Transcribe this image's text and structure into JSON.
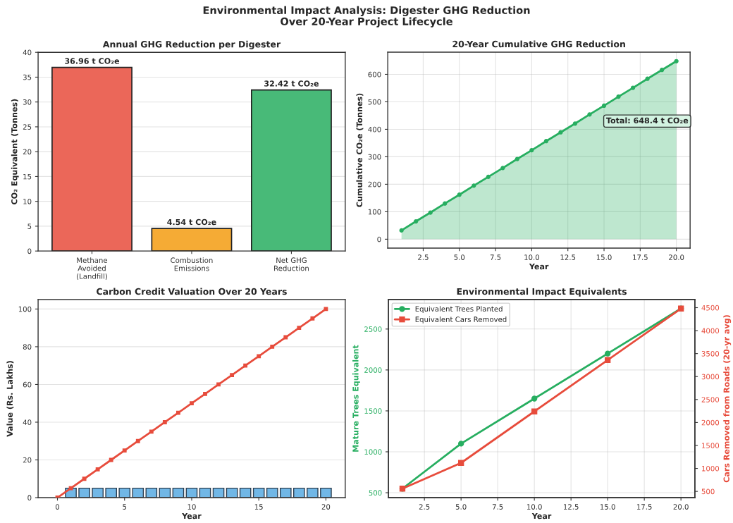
{
  "chart_data": [
    {
      "type": "other",
      "title": "Environmental Impact Analysis: Digester GHG Reduction\nOver 20-Year Project Lifecycle"
    },
    {
      "type": "bar",
      "title": "Annual GHG Reduction per Digester",
      "ylabel": "CO₂ Equivalent (Tonnes)",
      "categories": [
        "Methane\nAvoided\n(Landfill)",
        "Combustion\nEmissions",
        "Net GHG\nReduction"
      ],
      "values": [
        36.96,
        4.54,
        32.42
      ],
      "colors": [
        "#eb6759",
        "#f5ab35",
        "#48ba78"
      ],
      "value_labels": [
        "36.96 t CO₂e",
        "4.54 t CO₂e",
        "32.42 t CO₂e"
      ],
      "ylim": [
        0,
        40
      ],
      "yticks": [
        0,
        5,
        10,
        15,
        20,
        25,
        30,
        35,
        40
      ],
      "grid": "y"
    },
    {
      "type": "area",
      "title": "20-Year Cumulative GHG Reduction",
      "xlabel": "Year",
      "ylabel": "Cumulative CO₂e (Tonnes)",
      "x": [
        1,
        2,
        3,
        4,
        5,
        6,
        7,
        8,
        9,
        10,
        11,
        12,
        13,
        14,
        15,
        16,
        17,
        18,
        19,
        20
      ],
      "series": [
        {
          "color": "#27ae60",
          "marker": "circle",
          "values": [
            32,
            65,
            97,
            130,
            162,
            195,
            227,
            259,
            292,
            324,
            357,
            389,
            421,
            454,
            486,
            519,
            551,
            584,
            616,
            648
          ]
        }
      ],
      "xlim": [
        0.05,
        20.95
      ],
      "xticks": [
        2.5,
        {
          "value": 5,
          "label": "5.0"
        },
        7.5,
        {
          "value": 10,
          "label": "10.0"
        },
        12.5,
        {
          "value": 15,
          "label": "15.0"
        },
        17.5,
        {
          "value": 20,
          "label": "20.0"
        }
      ],
      "ylim": [
        -32.4,
        680.8
      ],
      "yticks": [
        0,
        100,
        200,
        300,
        400,
        500,
        600
      ],
      "grid": true,
      "annotations": [
        "Total: 648.4 t CO₂e"
      ]
    },
    {
      "type": "bar",
      "title": "Carbon Credit Valuation Over 20 Years",
      "xlabel": "Year",
      "ylabel": "Value (Rs. Lakhs)",
      "x": [
        0,
        1,
        2,
        3,
        4,
        5,
        6,
        7,
        8,
        9,
        10,
        11,
        12,
        13,
        14,
        15,
        16,
        17,
        18,
        19,
        20
      ],
      "series": [
        {
          "type": "bar",
          "color": "#71b7e6",
          "x": [
            1,
            2,
            3,
            4,
            5,
            6,
            7,
            8,
            9,
            10,
            11,
            12,
            13,
            14,
            15,
            16,
            17,
            18,
            19,
            20
          ],
          "values": [
            5,
            5,
            5,
            5,
            5,
            5,
            5,
            5,
            5,
            5,
            5,
            5,
            5,
            5,
            5,
            5,
            5,
            5,
            5,
            5
          ]
        },
        {
          "type": "line",
          "color": "#e74c3c",
          "marker": "square",
          "values": [
            0,
            5,
            10,
            15,
            20,
            25,
            30,
            35,
            40,
            45,
            50,
            55,
            60,
            65,
            70,
            75,
            80,
            85,
            90,
            95,
            100
          ]
        }
      ],
      "xlim": [
        -1.44,
        21.44
      ],
      "xticks": [
        0,
        5,
        10,
        15,
        20
      ],
      "ylim": [
        0,
        105
      ],
      "yticks": [
        0,
        20,
        40,
        60,
        80,
        100
      ],
      "grid": "y"
    },
    {
      "type": "line",
      "title": "Environmental Impact Equivalents",
      "xlabel": "Year",
      "ylabel": "Mature Trees Equivalent",
      "y2label": "Cars Removed from Roads (20-yr avg)",
      "x": [
        1,
        5,
        10,
        15,
        20
      ],
      "series": [
        {
          "name": "Equivalent Trees Planted",
          "color": "#27ae60",
          "marker": "circle",
          "values": [
            550,
            1100,
            1650,
            2200,
            2750
          ]
        },
        {
          "name": "Equivalent Cars Removed",
          "color": "#e74c3c",
          "marker": "square",
          "axis": "y2",
          "values": [
            560,
            1120,
            2240,
            3360,
            4480
          ]
        }
      ],
      "xlim": [
        0.05,
        20.95
      ],
      "xticks": [
        2.5,
        {
          "value": 5,
          "label": "5.0"
        },
        7.5,
        {
          "value": 10,
          "label": "10.0"
        },
        12.5,
        {
          "value": 15,
          "label": "15.0"
        },
        17.5,
        {
          "value": 20,
          "label": "20.0"
        }
      ],
      "ylim": [
        440,
        2860
      ],
      "yticks": [
        500,
        1000,
        1500,
        2000,
        2500
      ],
      "y2lim": [
        364,
        4676
      ],
      "y2ticks": [
        500,
        1000,
        1500,
        2000,
        2500,
        3000,
        3500,
        4000,
        4500
      ],
      "grid": true,
      "legend": "top left"
    }
  ]
}
